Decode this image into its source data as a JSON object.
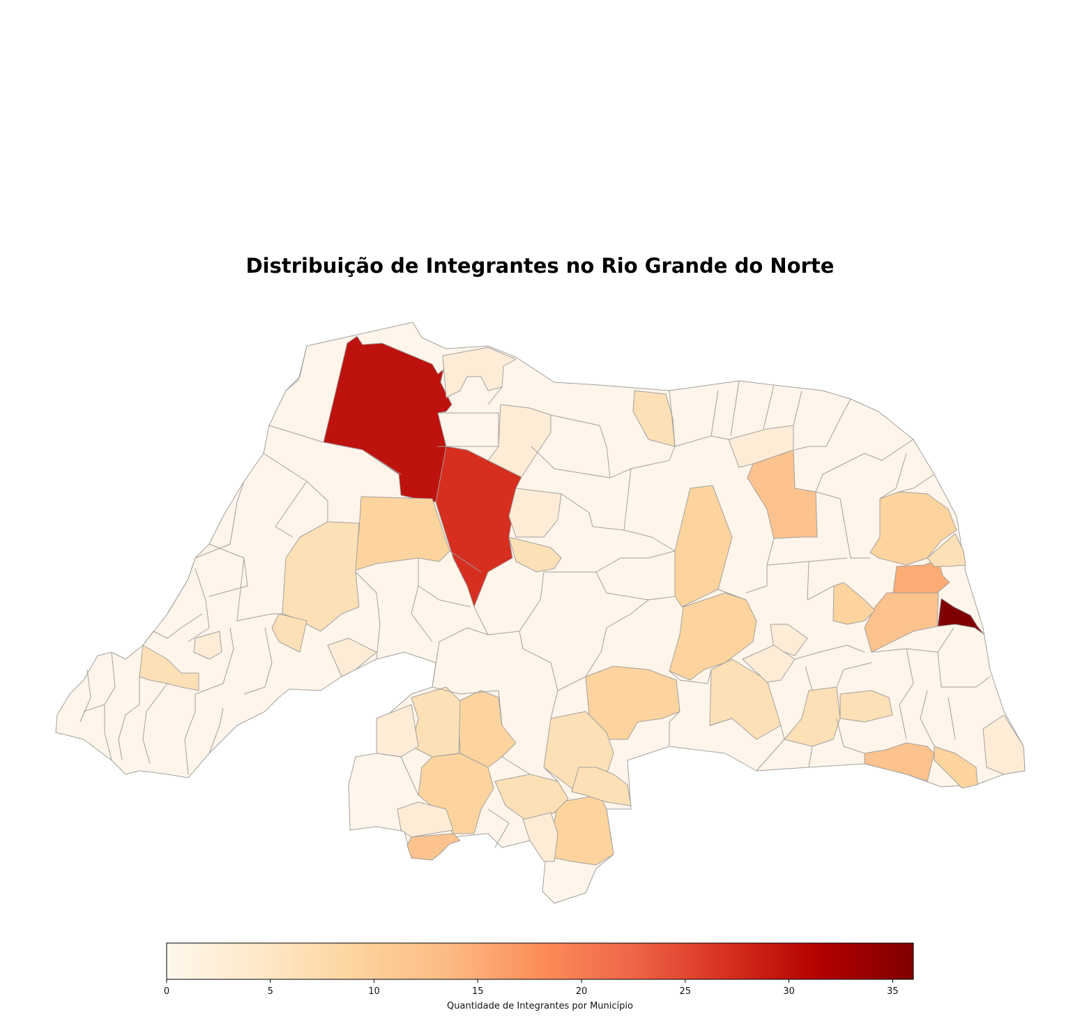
{
  "title": "Distribuição de Integrantes no Rio Grande do Norte",
  "colorbar": {
    "label": "Quantidade de Integrantes por Município",
    "min": 0,
    "max": 36,
    "ticks": [
      0,
      5,
      10,
      15,
      20,
      25,
      30,
      35
    ],
    "colormap": "OrRd",
    "stops": [
      "#fff7ec",
      "#fee8c8",
      "#fdd49e",
      "#fdbb84",
      "#fc8d59",
      "#ef6548",
      "#d7301f",
      "#b30000",
      "#7f0000"
    ]
  },
  "map": {
    "region": "Rio Grande do Norte",
    "border_color": "#a0a0a0",
    "base_fill": "#fff5ea",
    "highlighted_municipalities": [
      {
        "value": 31,
        "color": "#bd120d"
      },
      {
        "value": 27,
        "color": "#d62f1f"
      },
      {
        "value": 36,
        "color": "#7f0000"
      },
      {
        "value": 14,
        "color": "#fcab75"
      },
      {
        "value": 12,
        "color": "#fcc38e"
      },
      {
        "value": 9,
        "color": "#fdd49e"
      },
      {
        "value": 7,
        "color": "#fde0b6"
      },
      {
        "value": 4,
        "color": "#feecd6"
      }
    ]
  }
}
